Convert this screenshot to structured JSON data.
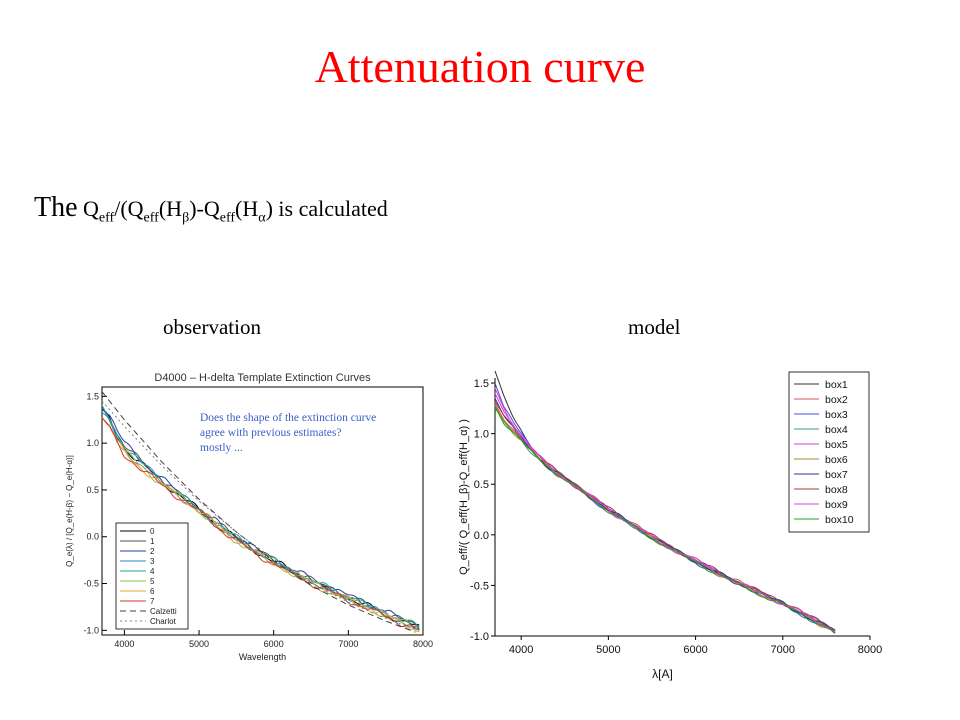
{
  "slide": {
    "title": "Attenuation curve",
    "formula_lead": "The",
    "formula_rest": "is calculated",
    "caption_left": "observation",
    "caption_right": "model"
  },
  "chart_data": [
    {
      "type": "line",
      "title": "D4000 – H-delta Template Extinction Curves",
      "xlabel": "Wavelength",
      "ylabel": "Q_e(λ) / [Q_e(H-β) − Q_e(H-α)]",
      "xlim": [
        3700,
        8000
      ],
      "ylim": [
        -1.05,
        1.6
      ],
      "xticks": [
        4000,
        5000,
        6000,
        7000,
        8000
      ],
      "yticks": [
        -1.0,
        -0.5,
        0.0,
        0.5,
        1.0,
        1.5
      ],
      "annotation": "Does the shape of the extinction curve agree with previous estimates? mostly ...",
      "annotation_color": "#3a5fc8",
      "legend_position": "bottom-left",
      "series": [
        {
          "name": "0",
          "color": "#000000",
          "dash": "none",
          "base": "obs",
          "offset": 0.0
        },
        {
          "name": "1",
          "color": "#505050",
          "dash": "none",
          "base": "obs",
          "offset": 0.03
        },
        {
          "name": "2",
          "color": "#2a3fa0",
          "dash": "none",
          "base": "obs",
          "offset": 0.06
        },
        {
          "name": "3",
          "color": "#2e86c1",
          "dash": "none",
          "base": "obs",
          "offset": -0.03
        },
        {
          "name": "4",
          "color": "#26a69a",
          "dash": "none",
          "base": "obs",
          "offset": 0.02
        },
        {
          "name": "5",
          "color": "#8bc34a",
          "dash": "none",
          "base": "obs",
          "offset": -0.05
        },
        {
          "name": "6",
          "color": "#f0a030",
          "dash": "none",
          "base": "obs",
          "offset": -0.07
        },
        {
          "name": "7",
          "color": "#d03a2a",
          "dash": "none",
          "base": "obs",
          "offset": -0.09
        },
        {
          "name": "Calzetti",
          "color": "#404040",
          "dash": "6,4",
          "base": "calzetti",
          "offset": 0
        },
        {
          "name": "Charlot",
          "color": "#808080",
          "dash": "2,3",
          "base": "charlot",
          "offset": 0
        }
      ],
      "bases": {
        "obs": {
          "x": [
            3700,
            3800,
            3900,
            4000,
            4200,
            4400,
            4600,
            4800,
            5000,
            5200,
            5400,
            5600,
            5800,
            6000,
            6200,
            6400,
            6600,
            6800,
            7000,
            7200,
            7400,
            7600,
            7800,
            7950
          ],
          "y": [
            1.35,
            1.25,
            1.08,
            0.95,
            0.8,
            0.66,
            0.53,
            0.41,
            0.28,
            0.16,
            0.04,
            -0.07,
            -0.17,
            -0.26,
            -0.35,
            -0.43,
            -0.51,
            -0.58,
            -0.65,
            -0.72,
            -0.79,
            -0.86,
            -0.92,
            -0.98
          ]
        },
        "calzetti": {
          "x": [
            3700,
            4000,
            4500,
            5000,
            5500,
            6000,
            6500,
            7000,
            7500,
            7900
          ],
          "y": [
            1.55,
            1.25,
            0.8,
            0.4,
            0.05,
            -0.26,
            -0.52,
            -0.73,
            -0.9,
            -1.02
          ]
        },
        "charlot": {
          "x": [
            3700,
            4000,
            4500,
            5000,
            5500,
            6000,
            6500,
            7000,
            7500,
            7900
          ],
          "y": [
            1.45,
            1.18,
            0.76,
            0.38,
            0.05,
            -0.24,
            -0.49,
            -0.7,
            -0.87,
            -0.99
          ]
        }
      }
    },
    {
      "type": "line",
      "xlabel": "λ[A]",
      "ylabel": "Q_eff/( Q_eff(H_β)-Q_eff(H_α) )",
      "xlim": [
        3700,
        8000
      ],
      "ylim": [
        -1.0,
        1.55
      ],
      "xticks": [
        4000,
        5000,
        6000,
        7000,
        8000
      ],
      "yticks": [
        -1.0,
        -0.5,
        0.0,
        0.5,
        1.0,
        1.5
      ],
      "legend_position": "top-right",
      "series": [
        {
          "name": "box1",
          "color": "#333333",
          "offset": 0.0,
          "start": 1.62
        },
        {
          "name": "box2",
          "color": "#e05050",
          "offset": 0.01,
          "start": 1.3
        },
        {
          "name": "box3",
          "color": "#4a4ae8",
          "offset": -0.01,
          "start": 1.5
        },
        {
          "name": "box4",
          "color": "#3aa56a",
          "offset": 0.0,
          "start": 1.25
        },
        {
          "name": "box5",
          "color": "#cc44cc",
          "offset": 0.01,
          "start": 1.4
        },
        {
          "name": "box6",
          "color": "#a08a20",
          "offset": -0.01,
          "start": 1.28
        },
        {
          "name": "box7",
          "color": "#3030a0",
          "offset": 0.0,
          "start": 1.35
        },
        {
          "name": "box8",
          "color": "#a04040",
          "offset": 0.01,
          "start": 1.32
        },
        {
          "name": "box9",
          "color": "#e040e0",
          "offset": 0.0,
          "start": 1.45
        },
        {
          "name": "box10",
          "color": "#20a020",
          "offset": -0.01,
          "start": 1.27
        }
      ],
      "base": {
        "x": [
          3800,
          4000,
          4200,
          4400,
          4600,
          4800,
          5000,
          5200,
          5400,
          5600,
          5800,
          6000,
          6200,
          6400,
          6600,
          6800,
          7000,
          7200,
          7400,
          7600
        ],
        "y": [
          1.05,
          0.9,
          0.75,
          0.62,
          0.5,
          0.37,
          0.25,
          0.14,
          0.03,
          -0.07,
          -0.17,
          -0.26,
          -0.35,
          -0.44,
          -0.52,
          -0.6,
          -0.68,
          -0.77,
          -0.86,
          -0.95
        ]
      }
    }
  ]
}
